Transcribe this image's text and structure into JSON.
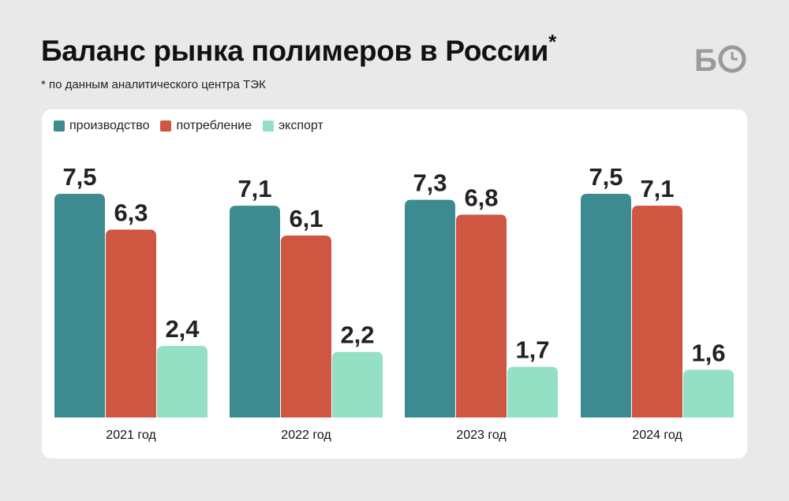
{
  "header": {
    "title": "Баланс рынка полимеров в России",
    "title_mark": "*",
    "subtitle": "* по данным аналитического центра ТЭК"
  },
  "logo": {
    "text": "БО",
    "icon": "clock-icon",
    "color": "#9a9a9a"
  },
  "colors": {
    "production": "#3d8a91",
    "consumption": "#cf5640",
    "export": "#93e0c4"
  },
  "chart_data": {
    "type": "bar",
    "title": "Баланс рынка полимеров в России",
    "categories": [
      "2021 год",
      "2022 год",
      "2023 год",
      "2024 год"
    ],
    "series": [
      {
        "name": "производство",
        "values": [
          7.5,
          7.1,
          7.3,
          7.5
        ],
        "labels": [
          "7,5",
          "7,1",
          "7,3",
          "7,5"
        ]
      },
      {
        "name": "потребление",
        "values": [
          6.3,
          6.1,
          6.8,
          7.1
        ],
        "labels": [
          "6,3",
          "6,1",
          "6,8",
          "7,1"
        ]
      },
      {
        "name": "экспорт",
        "values": [
          2.4,
          2.2,
          1.7,
          1.6
        ],
        "labels": [
          "2,4",
          "2,2",
          "1,7",
          "1,6"
        ]
      }
    ],
    "ylim": [
      0,
      7.5
    ],
    "legend_position": "top-left",
    "grid": false
  }
}
